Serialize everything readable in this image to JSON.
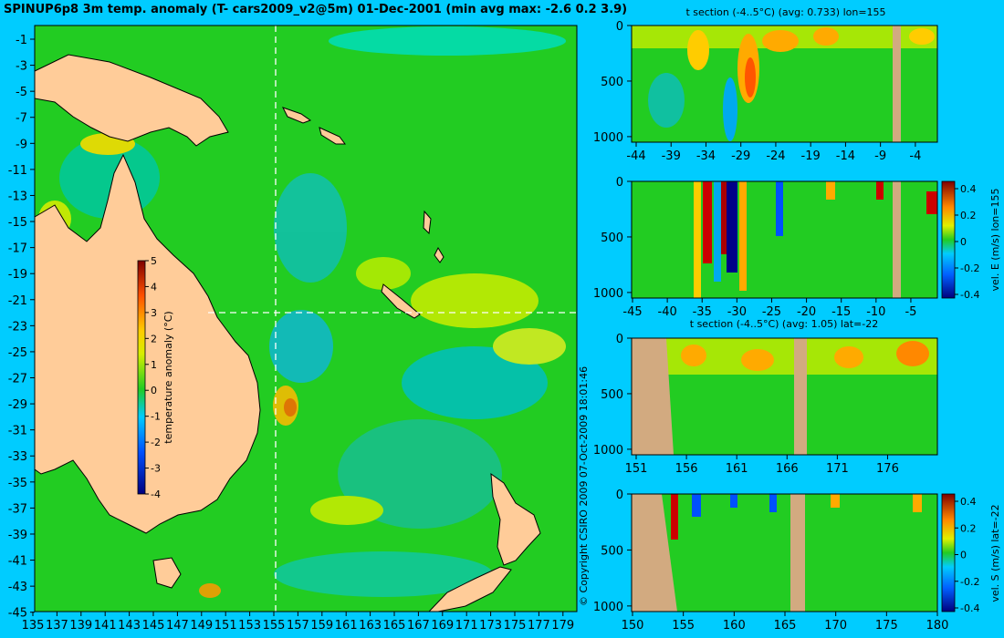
{
  "header": {
    "title": "SPINUP6p8 3m temp. anomaly (T- cars2009_v2@5m) 01-Dec-2001 (min avg max: -2.6 0.2 3.9)"
  },
  "copyright": "© Copyright CSIRO 2009  07-Oct-2009 18:01:46",
  "colors": {
    "background": "#00ccff",
    "ocean": "#22cc22",
    "land": "#ffcc99",
    "section_mask": "#d2aa80"
  },
  "chart_data": [
    {
      "type": "heatmap",
      "panel": "map",
      "title": "SPINUP6p8 3m temp. anomaly (T- cars2009_v2@5m) 01-Dec-2001 (min avg max: -2.6 0.2 3.9)",
      "x_ticks": [
        "135",
        "137",
        "139",
        "141",
        "143",
        "145",
        "147",
        "149",
        "151",
        "153",
        "155",
        "157",
        "159",
        "161",
        "163",
        "165",
        "167",
        "169",
        "171",
        "173",
        "175",
        "177",
        "179"
      ],
      "y_ticks": [
        "-1",
        "-3",
        "-5",
        "-7",
        "-9",
        "-11",
        "-13",
        "-15",
        "-17",
        "-19",
        "-21",
        "-23",
        "-25",
        "-27",
        "-29",
        "-31",
        "-33",
        "-35",
        "-37",
        "-39",
        "-41",
        "-43",
        "-45"
      ],
      "xlim": [
        135,
        180
      ],
      "ylim": [
        -45,
        0
      ],
      "section_lines": {
        "lon": 155,
        "lat": -22
      },
      "colorbar": {
        "label": "temperature anomaly (°C)",
        "ticks": [
          "5",
          "4",
          "3",
          "2",
          "1",
          "0",
          "-1",
          "-2",
          "-3",
          "-4"
        ],
        "range": [
          -4,
          5
        ]
      },
      "stats": {
        "min": -2.6,
        "avg": 0.2,
        "max": 3.9
      }
    },
    {
      "type": "heatmap",
      "panel": "section-1",
      "title": "t section (-4..5°C) (avg: 0.733) lon=155",
      "x_ticks": [
        "-44",
        "-39",
        "-34",
        "-29",
        "-24",
        "-19",
        "-14",
        "-9",
        "-4"
      ],
      "y_ticks": [
        "0",
        "500",
        "1000"
      ],
      "ylim": [
        0,
        1050
      ]
    },
    {
      "type": "heatmap",
      "panel": "section-2",
      "title": "",
      "x_ticks": [
        "-45",
        "-40",
        "-35",
        "-30",
        "-25",
        "-20",
        "-15",
        "-10",
        "-5"
      ],
      "y_ticks": [
        "0",
        "500",
        "1000"
      ],
      "colorbar": {
        "label": "vel. E (m/s) lon=155",
        "ticks": [
          "0.4",
          "0.2",
          "0",
          "-0.2",
          "-0.4"
        ],
        "range": [
          -0.4,
          0.4
        ]
      }
    },
    {
      "type": "heatmap",
      "panel": "section-3",
      "title": "t section (-4..5°C) (avg: 1.05) lat=-22",
      "x_ticks": [
        "151",
        "156",
        "161",
        "166",
        "171",
        "176"
      ],
      "y_ticks": [
        "0",
        "500",
        "1000"
      ]
    },
    {
      "type": "heatmap",
      "panel": "section-4",
      "title": "",
      "x_ticks": [
        "150",
        "155",
        "160",
        "165",
        "170",
        "175",
        "180"
      ],
      "y_ticks": [
        "0",
        "500",
        "1000"
      ],
      "colorbar": {
        "label": "vel. S (m/s) lat=-22",
        "ticks": [
          "0.4",
          "0.2",
          "0",
          "-0.2",
          "-0.4"
        ],
        "range": [
          -0.4,
          0.4
        ]
      }
    }
  ]
}
